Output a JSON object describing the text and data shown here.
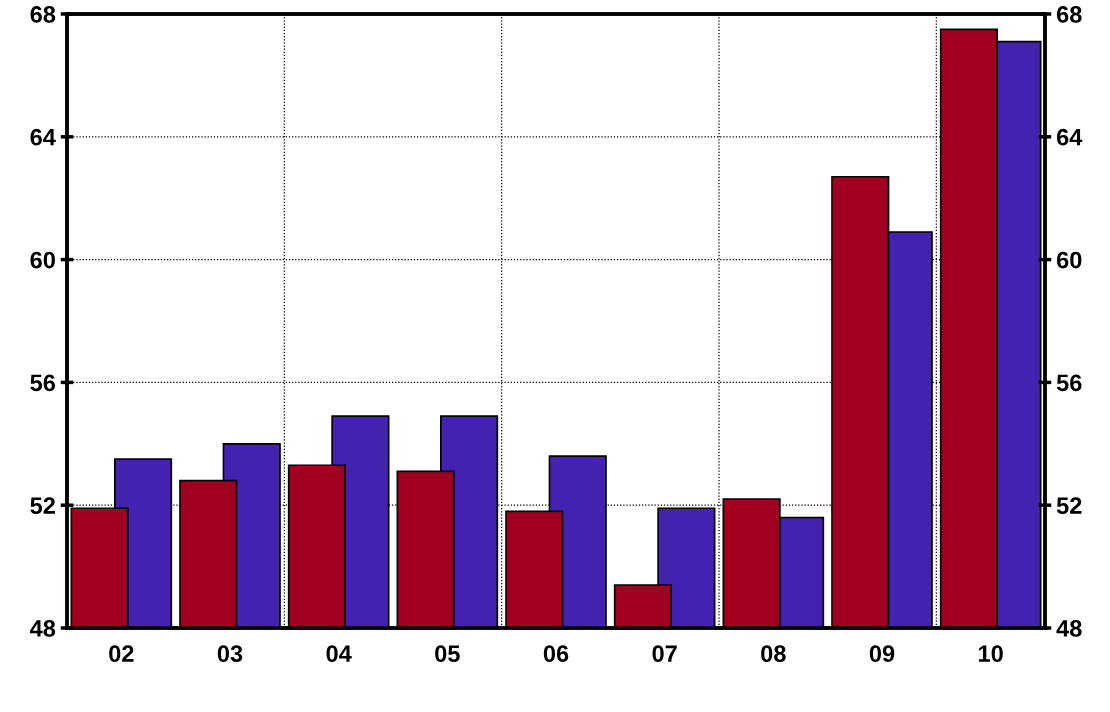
{
  "chart_data": {
    "type": "bar",
    "categories": [
      "02",
      "03",
      "04",
      "05",
      "06",
      "07",
      "08",
      "09",
      "10"
    ],
    "series": [
      {
        "color": "#a00020",
        "values": [
          51.9,
          52.8,
          53.3,
          53.1,
          51.8,
          49.4,
          52.2,
          62.7,
          67.5
        ]
      },
      {
        "color": "#4422b0",
        "values": [
          53.5,
          54.0,
          54.9,
          54.9,
          53.6,
          51.9,
          51.6,
          60.9,
          67.1
        ]
      }
    ],
    "ylim": [
      48,
      68
    ],
    "yticks": [
      48,
      52,
      56,
      60,
      64,
      68
    ],
    "y2lim": [
      48,
      68
    ],
    "y2ticks": [
      48,
      52,
      56,
      60,
      64,
      68
    ],
    "grid": true
  }
}
